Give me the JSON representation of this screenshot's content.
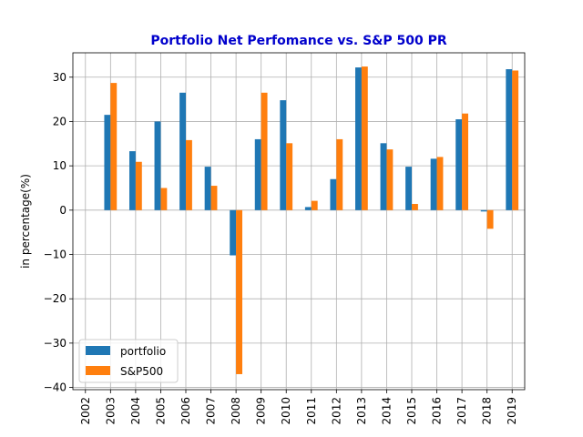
{
  "chart_data": {
    "type": "bar",
    "title": "Portfolio Net Perfomance vs. S&P 500 PR",
    "xlabel": "",
    "ylabel": "in percentage(%)",
    "categories": [
      "2002",
      "2003",
      "2004",
      "2005",
      "2006",
      "2007",
      "2008",
      "2009",
      "2010",
      "2011",
      "2012",
      "2013",
      "2014",
      "2015",
      "2016",
      "2017",
      "2018",
      "2019"
    ],
    "series": [
      {
        "name": "portfolio",
        "color": "#1f77b4",
        "values": [
          null,
          21.5,
          13.3,
          20.0,
          26.5,
          9.8,
          -10.2,
          16.0,
          24.8,
          0.7,
          7.0,
          32.2,
          15.1,
          9.8,
          11.6,
          20.5,
          -0.3,
          31.8
        ]
      },
      {
        "name": "S&P500",
        "color": "#ff7f0e",
        "values": [
          null,
          28.7,
          10.9,
          5.0,
          15.8,
          5.5,
          -37.0,
          26.5,
          15.1,
          2.1,
          16.0,
          32.4,
          13.7,
          1.4,
          12.0,
          21.8,
          -4.2,
          31.5
        ]
      }
    ],
    "ylim": [
      -40.5,
      35.5
    ],
    "yticks": [
      -40,
      -30,
      -20,
      -10,
      0,
      10,
      20,
      30
    ],
    "ytick_labels": [
      "−40",
      "−30",
      "−20",
      "−10",
      "0",
      "10",
      "20",
      "30"
    ],
    "grid": true,
    "legend_position": "lower-left"
  }
}
